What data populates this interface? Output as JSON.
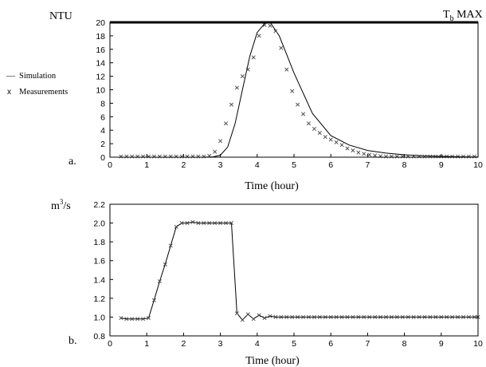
{
  "legend": {
    "simulation_symbol": "—",
    "simulation_label": "Simulation",
    "measurement_symbol": "x",
    "measurement_label": "Measurements"
  },
  "chart_data": [
    {
      "type": "line",
      "panel_label": "a.",
      "ylabel": "NTU",
      "xlabel": "Time (hour)",
      "annotation": {
        "text_main": "T",
        "text_sub": "b",
        "text_tail": " MAX",
        "value": 20
      },
      "xlim": [
        0,
        10
      ],
      "ylim": [
        0,
        20
      ],
      "xticks": [
        0,
        1,
        2,
        3,
        4,
        5,
        6,
        7,
        8,
        9,
        10
      ],
      "yticks": [
        0,
        2,
        4,
        6,
        8,
        10,
        12,
        14,
        16,
        18,
        20
      ],
      "grid": false,
      "series": [
        {
          "name": "Simulation",
          "style": "line",
          "x": [
            0.3,
            2.5,
            2.8,
            3.0,
            3.2,
            3.4,
            3.6,
            3.8,
            4.0,
            4.2,
            4.35,
            4.6,
            5.0,
            5.5,
            6.0,
            6.5,
            7.0,
            7.5,
            8.0,
            8.5,
            9.0,
            9.5,
            10.0
          ],
          "y": [
            0,
            0,
            0.05,
            0.3,
            1.5,
            5.0,
            10.0,
            15.0,
            18.5,
            19.8,
            20.0,
            18.0,
            12.5,
            6.5,
            3.2,
            1.8,
            1.0,
            0.6,
            0.35,
            0.2,
            0.12,
            0.06,
            0.03
          ]
        },
        {
          "name": "Measurements",
          "style": "x",
          "x": [
            0.3,
            0.45,
            0.6,
            0.75,
            0.9,
            1.05,
            1.2,
            1.35,
            1.5,
            1.65,
            1.8,
            1.95,
            2.1,
            2.25,
            2.4,
            2.55,
            2.7,
            2.85,
            3.0,
            3.15,
            3.3,
            3.45,
            3.6,
            3.75,
            3.9,
            4.05,
            4.2,
            4.35,
            4.5,
            4.65,
            4.8,
            4.95,
            5.1,
            5.25,
            5.4,
            5.55,
            5.7,
            5.85,
            6.0,
            6.15,
            6.3,
            6.45,
            6.6,
            6.75,
            6.9,
            7.05,
            7.2,
            7.35,
            7.5,
            7.65,
            7.8,
            7.95,
            8.1,
            8.25,
            8.4,
            8.55,
            8.7,
            8.85,
            9.0,
            9.15,
            9.3,
            9.45,
            9.6,
            9.75,
            9.9
          ],
          "y": [
            0.1,
            0.1,
            0.1,
            0.1,
            0.1,
            0.1,
            0.1,
            0.1,
            0.1,
            0.1,
            0.1,
            0.1,
            0.1,
            0.1,
            0.1,
            0.1,
            0.2,
            0.8,
            2.4,
            5.0,
            7.8,
            10.3,
            12.0,
            13.0,
            14.8,
            18.0,
            19.6,
            19.5,
            18.7,
            16.2,
            13.0,
            9.8,
            7.8,
            6.4,
            5.0,
            4.2,
            3.6,
            3.0,
            2.6,
            2.2,
            1.8,
            1.3,
            1.0,
            0.7,
            0.5,
            0.35,
            0.25,
            0.15,
            0.1,
            0.1,
            0.1,
            0.1,
            0.1,
            0.1,
            0.1,
            0.1,
            0.1,
            0.1,
            0.1,
            0.1,
            0.1,
            0.1,
            0.1,
            0.1,
            0.1
          ]
        }
      ]
    },
    {
      "type": "line",
      "panel_label": "b.",
      "ylabel_base": "m",
      "ylabel_sup": "3",
      "ylabel_tail": "/s",
      "xlabel": "Time (hour)",
      "xlim": [
        0,
        10
      ],
      "ylim": [
        0.8,
        2.2
      ],
      "xticks": [
        0,
        1,
        2,
        3,
        4,
        5,
        6,
        7,
        8,
        9,
        10
      ],
      "yticks": [
        0.8,
        1.0,
        1.2,
        1.4,
        1.6,
        1.8,
        2.0,
        2.2
      ],
      "ytick_labels": [
        "0.8",
        "1.0",
        "1.2",
        "1.4",
        "1.6",
        "1.8",
        "2.0",
        "2.2"
      ],
      "grid": false,
      "series": [
        {
          "name": "",
          "style": "line-x",
          "x": [
            0.3,
            0.45,
            0.6,
            0.75,
            0.9,
            1.05,
            1.2,
            1.35,
            1.5,
            1.65,
            1.8,
            1.95,
            2.1,
            2.25,
            2.4,
            2.55,
            2.7,
            2.85,
            3.0,
            3.15,
            3.3,
            3.45,
            3.6,
            3.75,
            3.9,
            4.05,
            4.2,
            4.35,
            4.5,
            4.65,
            4.8,
            4.95,
            5.1,
            5.25,
            5.4,
            5.55,
            5.7,
            5.85,
            6.0,
            6.15,
            6.3,
            6.45,
            6.6,
            6.75,
            6.9,
            7.05,
            7.2,
            7.35,
            7.5,
            7.65,
            7.8,
            7.95,
            8.1,
            8.25,
            8.4,
            8.55,
            8.7,
            8.85,
            9.0,
            9.15,
            9.3,
            9.45,
            9.6,
            9.75,
            9.9,
            10.0
          ],
          "y": [
            0.99,
            0.98,
            0.98,
            0.98,
            0.98,
            0.99,
            1.18,
            1.38,
            1.56,
            1.76,
            1.96,
            2.0,
            2.0,
            2.01,
            2.0,
            2.0,
            2.0,
            2.0,
            2.0,
            2.0,
            2.0,
            1.04,
            0.97,
            1.03,
            0.98,
            1.02,
            0.99,
            1.01,
            1.0,
            1.0,
            1.0,
            1.0,
            1.0,
            1.0,
            1.0,
            1.0,
            1.0,
            1.0,
            1.0,
            1.0,
            1.0,
            1.0,
            1.0,
            1.0,
            1.0,
            1.0,
            1.0,
            1.0,
            1.0,
            1.0,
            1.0,
            1.0,
            1.0,
            1.0,
            1.0,
            1.0,
            1.0,
            1.0,
            1.0,
            1.0,
            1.0,
            1.0,
            1.0,
            1.0,
            1.0,
            1.0
          ]
        }
      ]
    }
  ]
}
